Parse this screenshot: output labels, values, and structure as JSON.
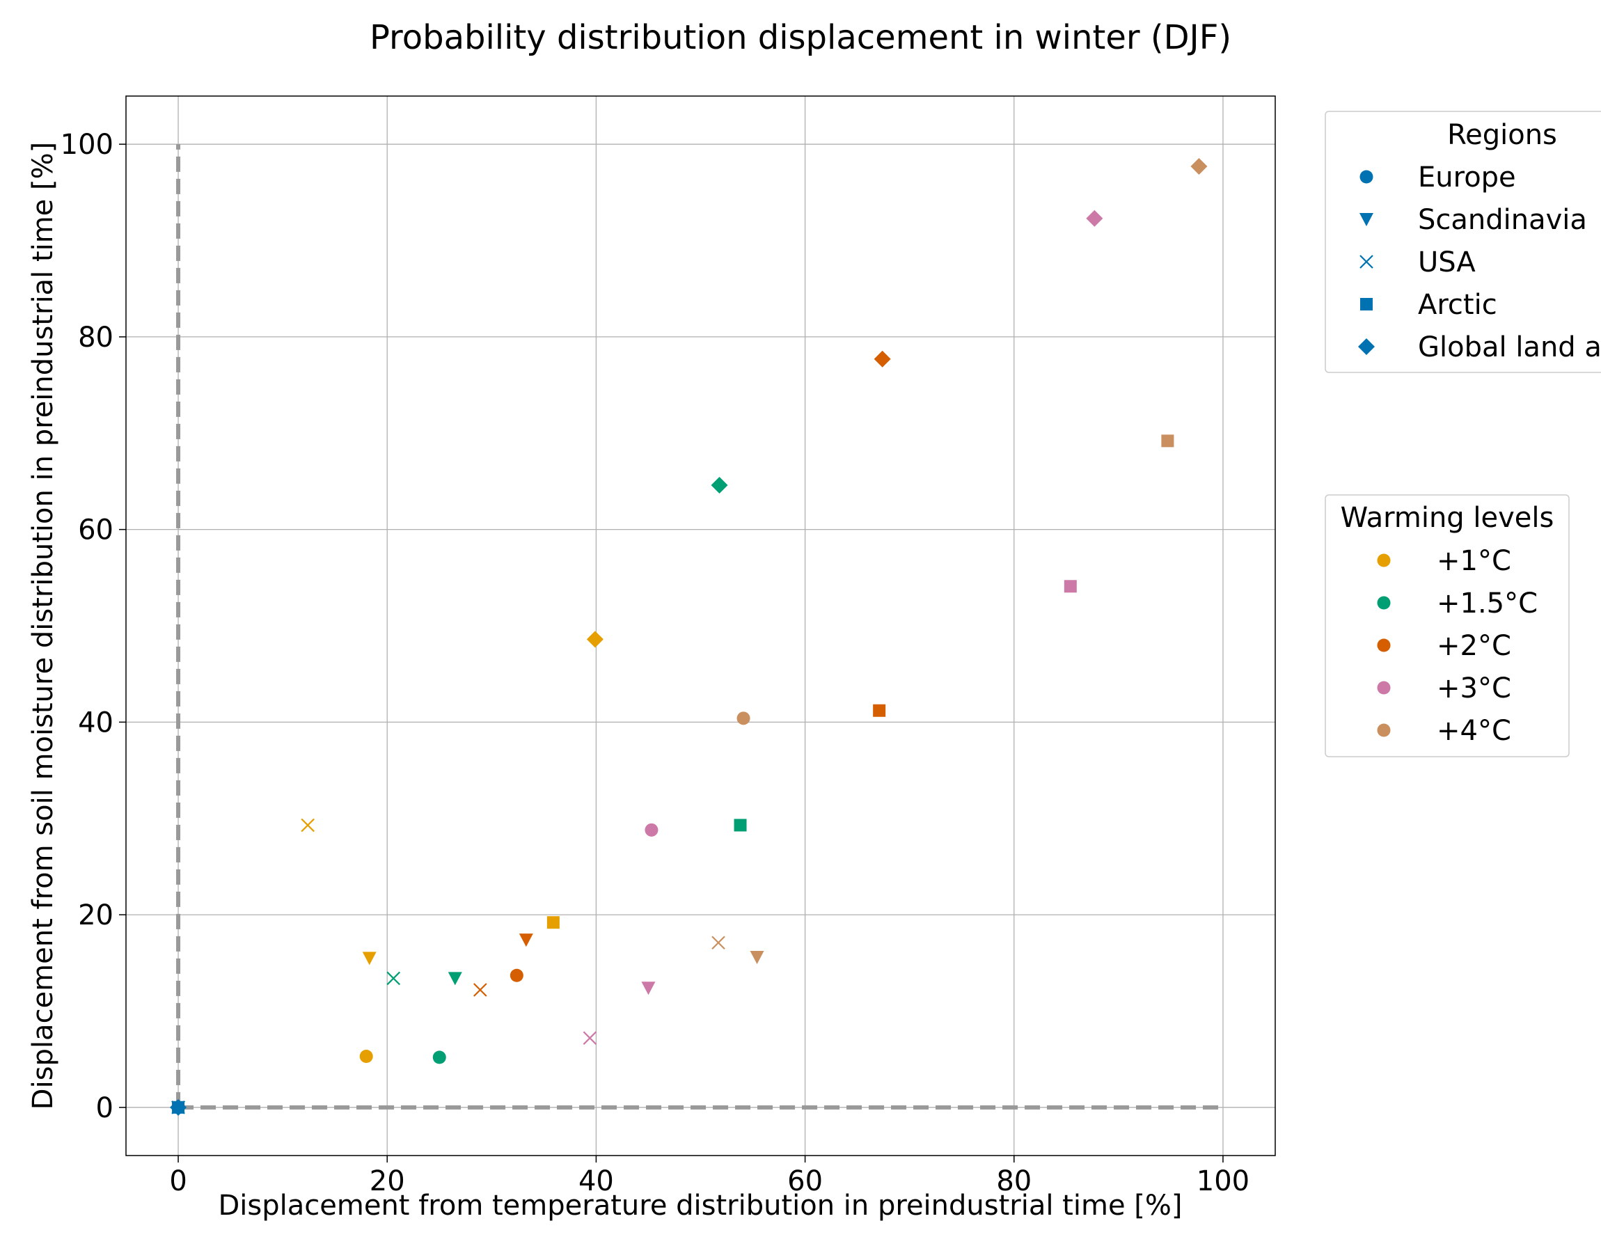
{
  "chart_data": {
    "type": "scatter",
    "title": "Probability distribution displacement in winter (DJF)",
    "xlabel": "Displacement from temperature distribution in preindustrial time [%]",
    "ylabel": "Displacement from soil moisture distribution in preindustrial time [%]",
    "xlim": [
      -5,
      105
    ],
    "ylim": [
      -5,
      105
    ],
    "xticks": [
      0,
      20,
      40,
      60,
      80,
      100
    ],
    "yticks": [
      0,
      20,
      40,
      60,
      80,
      100
    ],
    "grid": true,
    "reference_lines": [
      {
        "style": "dashed",
        "color": "#999999",
        "points": [
          [
            0,
            0
          ],
          [
            0,
            100
          ]
        ]
      },
      {
        "style": "dashed",
        "color": "#999999",
        "points": [
          [
            0,
            0
          ],
          [
            100,
            0
          ]
        ]
      }
    ],
    "legends": {
      "regions": {
        "title": "Regions",
        "placement": "outside-top-right",
        "color": "#0072B2",
        "entries": [
          {
            "label": "Europe",
            "marker": "circle"
          },
          {
            "label": "Scandinavia",
            "marker": "triangle-down"
          },
          {
            "label": "USA",
            "marker": "x"
          },
          {
            "label": "Arctic",
            "marker": "square"
          },
          {
            "label": "Global land a",
            "marker": "diamond"
          }
        ]
      },
      "warming": {
        "title": "Warming levels",
        "placement": "outside-right",
        "entries": [
          {
            "label": "+1°C",
            "color": "#E69F00"
          },
          {
            "label": "+1.5°C",
            "color": "#009E73"
          },
          {
            "label": "+2°C",
            "color": "#D55E00"
          },
          {
            "label": "+3°C",
            "color": "#CC79A7"
          },
          {
            "label": "+4°C",
            "color": "#C98F5E"
          }
        ]
      }
    },
    "origin_points": [
      {
        "x": 0,
        "y": 0,
        "marker": "circle",
        "color": "#0072B2"
      },
      {
        "x": 0,
        "y": 0,
        "marker": "triangle-down",
        "color": "#0072B2"
      },
      {
        "x": 0,
        "y": 0,
        "marker": "x",
        "color": "#0072B2"
      },
      {
        "x": 0,
        "y": 0,
        "marker": "square",
        "color": "#0072B2"
      },
      {
        "x": 0,
        "y": 0,
        "marker": "diamond",
        "color": "#0072B2"
      }
    ],
    "points": [
      {
        "warming": "+1°C",
        "region": "Europe",
        "marker": "circle",
        "x": 18,
        "y": 5.3
      },
      {
        "warming": "+1°C",
        "region": "Scandinavia",
        "marker": "triangle-down",
        "x": 18.3,
        "y": 15.5
      },
      {
        "warming": "+1°C",
        "region": "USA",
        "marker": "x",
        "x": 12.4,
        "y": 29.3
      },
      {
        "warming": "+1°C",
        "region": "Arctic",
        "marker": "square",
        "x": 35.9,
        "y": 19.2
      },
      {
        "warming": "+1°C",
        "region": "Global land a",
        "marker": "diamond",
        "x": 39.9,
        "y": 48.6
      },
      {
        "warming": "+1.5°C",
        "region": "Europe",
        "marker": "circle",
        "x": 25,
        "y": 5.2
      },
      {
        "warming": "+1.5°C",
        "region": "Scandinavia",
        "marker": "triangle-down",
        "x": 26.5,
        "y": 13.4
      },
      {
        "warming": "+1.5°C",
        "region": "USA",
        "marker": "x",
        "x": 20.6,
        "y": 13.4
      },
      {
        "warming": "+1.5°C",
        "region": "Arctic",
        "marker": "square",
        "x": 53.8,
        "y": 29.3
      },
      {
        "warming": "+1.5°C",
        "region": "Global land a",
        "marker": "diamond",
        "x": 51.8,
        "y": 64.6
      },
      {
        "warming": "+2°C",
        "region": "Europe",
        "marker": "circle",
        "x": 32.4,
        "y": 13.7
      },
      {
        "warming": "+2°C",
        "region": "Scandinavia",
        "marker": "triangle-down",
        "x": 33.3,
        "y": 17.4
      },
      {
        "warming": "+2°C",
        "region": "USA",
        "marker": "x",
        "x": 28.9,
        "y": 12.2
      },
      {
        "warming": "+2°C",
        "region": "Arctic",
        "marker": "square",
        "x": 67.1,
        "y": 41.2
      },
      {
        "warming": "+2°C",
        "region": "Global land a",
        "marker": "diamond",
        "x": 67.4,
        "y": 77.7
      },
      {
        "warming": "+3°C",
        "region": "Europe",
        "marker": "circle",
        "x": 45.3,
        "y": 28.8
      },
      {
        "warming": "+3°C",
        "region": "Scandinavia",
        "marker": "triangle-down",
        "x": 45,
        "y": 12.4
      },
      {
        "warming": "+3°C",
        "region": "USA",
        "marker": "x",
        "x": 39.4,
        "y": 7.2
      },
      {
        "warming": "+3°C",
        "region": "Arctic",
        "marker": "square",
        "x": 85.4,
        "y": 54.1
      },
      {
        "warming": "+3°C",
        "region": "Global land a",
        "marker": "diamond",
        "x": 87.7,
        "y": 92.3
      },
      {
        "warming": "+4°C",
        "region": "Europe",
        "marker": "circle",
        "x": 54.1,
        "y": 40.4
      },
      {
        "warming": "+4°C",
        "region": "Scandinavia",
        "marker": "triangle-down",
        "x": 55.4,
        "y": 15.6
      },
      {
        "warming": "+4°C",
        "region": "USA",
        "marker": "x",
        "x": 51.7,
        "y": 17.1
      },
      {
        "warming": "+4°C",
        "region": "Arctic",
        "marker": "square",
        "x": 94.7,
        "y": 69.2
      },
      {
        "warming": "+4°C",
        "region": "Global land a",
        "marker": "diamond",
        "x": 97.7,
        "y": 97.7
      }
    ]
  }
}
